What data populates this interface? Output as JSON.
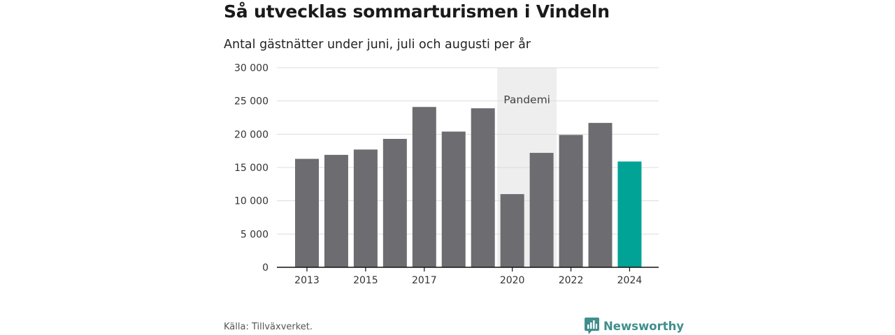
{
  "title": "Så utvecklas sommarturismen i Vindeln",
  "subtitle": "Antal gästnätter under juni, juli och augusti per år",
  "source": "Källa: Tillväxverket.",
  "brand": {
    "name": "Newsworthy",
    "icon": "newsworthy-logo-icon"
  },
  "colors": {
    "bar": "#6d6c71",
    "highlight": "#00a396",
    "pandemic_band": "#eeeeee",
    "grid": "#dcdcdc",
    "brand": "#3f8f8c"
  },
  "chart_data": {
    "type": "bar",
    "categories": [
      "2013",
      "2014",
      "2015",
      "2016",
      "2017",
      "2018",
      "2019",
      "2020",
      "2021",
      "2022",
      "2023",
      "2024"
    ],
    "values": [
      16300,
      16900,
      17700,
      19300,
      24100,
      20400,
      23900,
      11000,
      17200,
      19900,
      21700,
      15900
    ],
    "highlight_category": "2024",
    "xtick_labels": [
      "2013",
      "2015",
      "2017",
      "2020",
      "2022",
      "2024"
    ],
    "yticks": [
      0,
      5000,
      10000,
      15000,
      20000,
      25000,
      30000
    ],
    "ytick_labels": [
      "0",
      "5 000",
      "10 000",
      "15 000",
      "20 000",
      "25 000",
      "30 000"
    ],
    "ylim": [
      0,
      30000
    ],
    "grid": true,
    "annotation": {
      "label": "Pandemi",
      "from": "2020",
      "to": "2021"
    }
  }
}
